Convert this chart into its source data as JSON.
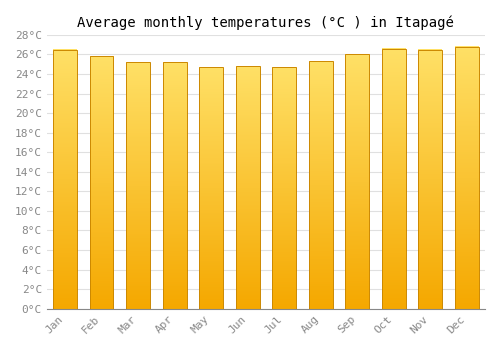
{
  "title": "Average monthly temperatures (°C ) in Itapagé",
  "months": [
    "Jan",
    "Feb",
    "Mar",
    "Apr",
    "May",
    "Jun",
    "Jul",
    "Aug",
    "Sep",
    "Oct",
    "Nov",
    "Dec"
  ],
  "values": [
    26.5,
    25.8,
    25.2,
    25.2,
    24.7,
    24.8,
    24.7,
    25.3,
    26.0,
    26.6,
    26.5,
    26.8
  ],
  "ylim": [
    0,
    28
  ],
  "yticks": [
    0,
    2,
    4,
    6,
    8,
    10,
    12,
    14,
    16,
    18,
    20,
    22,
    24,
    26,
    28
  ],
  "ytick_labels": [
    "0°C",
    "2°C",
    "4°C",
    "6°C",
    "8°C",
    "10°C",
    "12°C",
    "14°C",
    "16°C",
    "18°C",
    "20°C",
    "22°C",
    "24°C",
    "26°C",
    "28°C"
  ],
  "background_color": "#ffffff",
  "grid_color": "#e0e0e0",
  "title_fontsize": 10,
  "tick_fontsize": 8,
  "bar_color_bottom": "#F5A800",
  "bar_color_top": "#FFE066",
  "bar_edge_color": "#CC8800",
  "bar_width": 0.65
}
